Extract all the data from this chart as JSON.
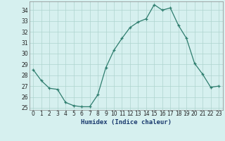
{
  "x": [
    0,
    1,
    2,
    3,
    4,
    5,
    6,
    7,
    8,
    9,
    10,
    11,
    12,
    13,
    14,
    15,
    16,
    17,
    18,
    19,
    20,
    21,
    22,
    23
  ],
  "y": [
    28.5,
    27.5,
    26.8,
    26.7,
    25.5,
    25.2,
    25.1,
    25.1,
    26.2,
    28.7,
    30.3,
    31.4,
    32.4,
    32.9,
    33.2,
    34.5,
    34.0,
    34.2,
    32.6,
    31.4,
    29.1,
    28.1,
    26.9,
    27.0
  ],
  "xlabel": "Humidex (Indice chaleur)",
  "xlim": [
    -0.5,
    23.5
  ],
  "ylim": [
    24.8,
    34.8
  ],
  "yticks": [
    25,
    26,
    27,
    28,
    29,
    30,
    31,
    32,
    33,
    34
  ],
  "xticks": [
    0,
    1,
    2,
    3,
    4,
    5,
    6,
    7,
    8,
    9,
    10,
    11,
    12,
    13,
    14,
    15,
    16,
    17,
    18,
    19,
    20,
    21,
    22,
    23
  ],
  "line_color": "#2e7d6e",
  "marker": "+",
  "bg_color": "#d6f0ef",
  "grid_color": "#aed4cf",
  "xlabel_color": "#1a3a6e",
  "tick_fontsize": 5.5,
  "xlabel_fontsize": 6.5
}
